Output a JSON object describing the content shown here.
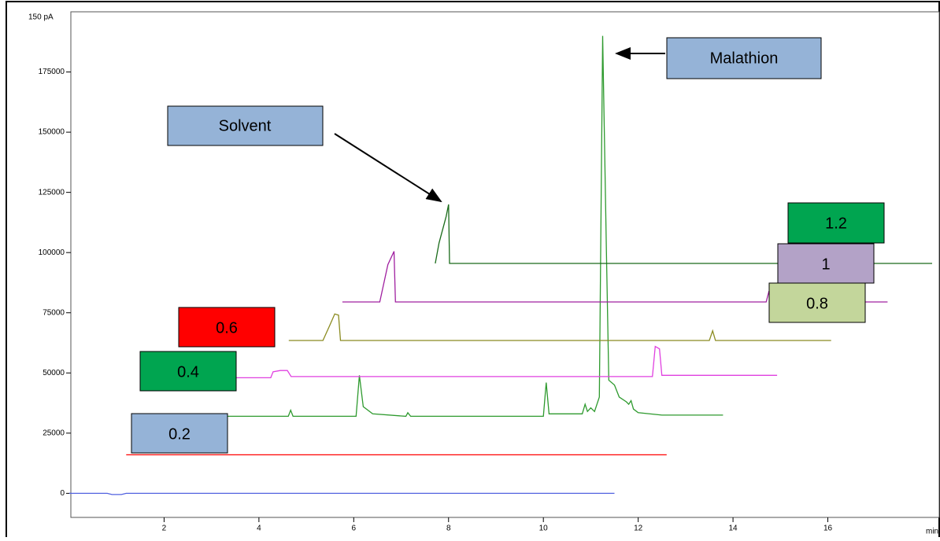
{
  "chart_data": {
    "type": "line",
    "ylabel": "150 pA",
    "xlabel": "min",
    "xlim": [
      0,
      18.2
    ],
    "ylim": [
      -10000,
      200000
    ],
    "xticks": [
      2,
      4,
      6,
      8,
      10,
      12,
      14,
      16
    ],
    "yticks": [
      0,
      25000,
      50000,
      75000,
      100000,
      125000,
      150000,
      175000
    ],
    "series": [
      {
        "color": "#5262e0",
        "x": [
          0,
          0.8,
          0.9,
          1.1,
          1.2,
          11.5
        ],
        "values": [
          0,
          0,
          -500,
          -500,
          0,
          0
        ]
      },
      {
        "color": "#ff0000",
        "x": [
          1.2,
          12.6
        ],
        "values": [
          16000,
          16000
        ]
      },
      {
        "color": "#2e9a2e",
        "x": [
          2.86,
          4.62,
          4.67,
          4.72,
          6.05,
          6.12,
          6.2,
          6.4,
          7.1,
          7.14,
          7.2,
          10.0,
          10.06,
          10.12,
          10.82,
          10.88,
          10.93,
          11.0,
          11.08,
          11.18,
          11.25,
          11.33,
          11.38,
          11.5,
          11.6,
          11.75,
          11.8,
          11.85,
          11.9,
          12.0,
          12.5,
          13.79
        ],
        "values": [
          32000,
          32000,
          34500,
          32000,
          32000,
          49000,
          36000,
          33000,
          32000,
          33500,
          32000,
          32000,
          46000,
          33000,
          33000,
          37000,
          34000,
          35500,
          34000,
          40000,
          190000,
          100000,
          47000,
          45000,
          40000,
          38000,
          37000,
          38500,
          35000,
          33500,
          32500,
          32500
        ]
      },
      {
        "color": "#e040e0",
        "x": [
          3.51,
          4.25,
          4.3,
          4.45,
          4.6,
          4.68,
          12.3,
          12.36,
          12.45,
          12.5,
          14.93
        ],
        "values": [
          48000,
          48000,
          50500,
          51000,
          51000,
          48500,
          48500,
          61000,
          60000,
          49000,
          49000
        ]
      },
      {
        "color": "#8b8b20",
        "x": [
          4.63,
          5.35,
          5.5,
          5.6,
          5.68,
          5.72,
          13.5,
          13.57,
          13.63,
          16.07
        ],
        "values": [
          63500,
          63500,
          70000,
          74500,
          74000,
          63500,
          63500,
          67500,
          63500,
          63500
        ]
      },
      {
        "color": "#a020a0",
        "x": [
          5.76,
          6.55,
          6.62,
          6.72,
          6.85,
          6.88,
          14.7,
          14.76,
          14.8,
          17.26
        ],
        "values": [
          79500,
          79500,
          86000,
          95000,
          100500,
          79500,
          79500,
          84000,
          79500,
          79500
        ]
      },
      {
        "color": "#1a6b1a",
        "x": [
          7.72,
          7.8,
          7.95,
          8.0,
          8.02,
          18.2
        ],
        "values": [
          95500,
          104000,
          115000,
          120000,
          95500,
          95500
        ]
      }
    ],
    "annotations": [
      "Solvent",
      "Malathion",
      "1.2",
      "1",
      "0.8",
      "0.6",
      "0.4",
      "0.2"
    ]
  }
}
